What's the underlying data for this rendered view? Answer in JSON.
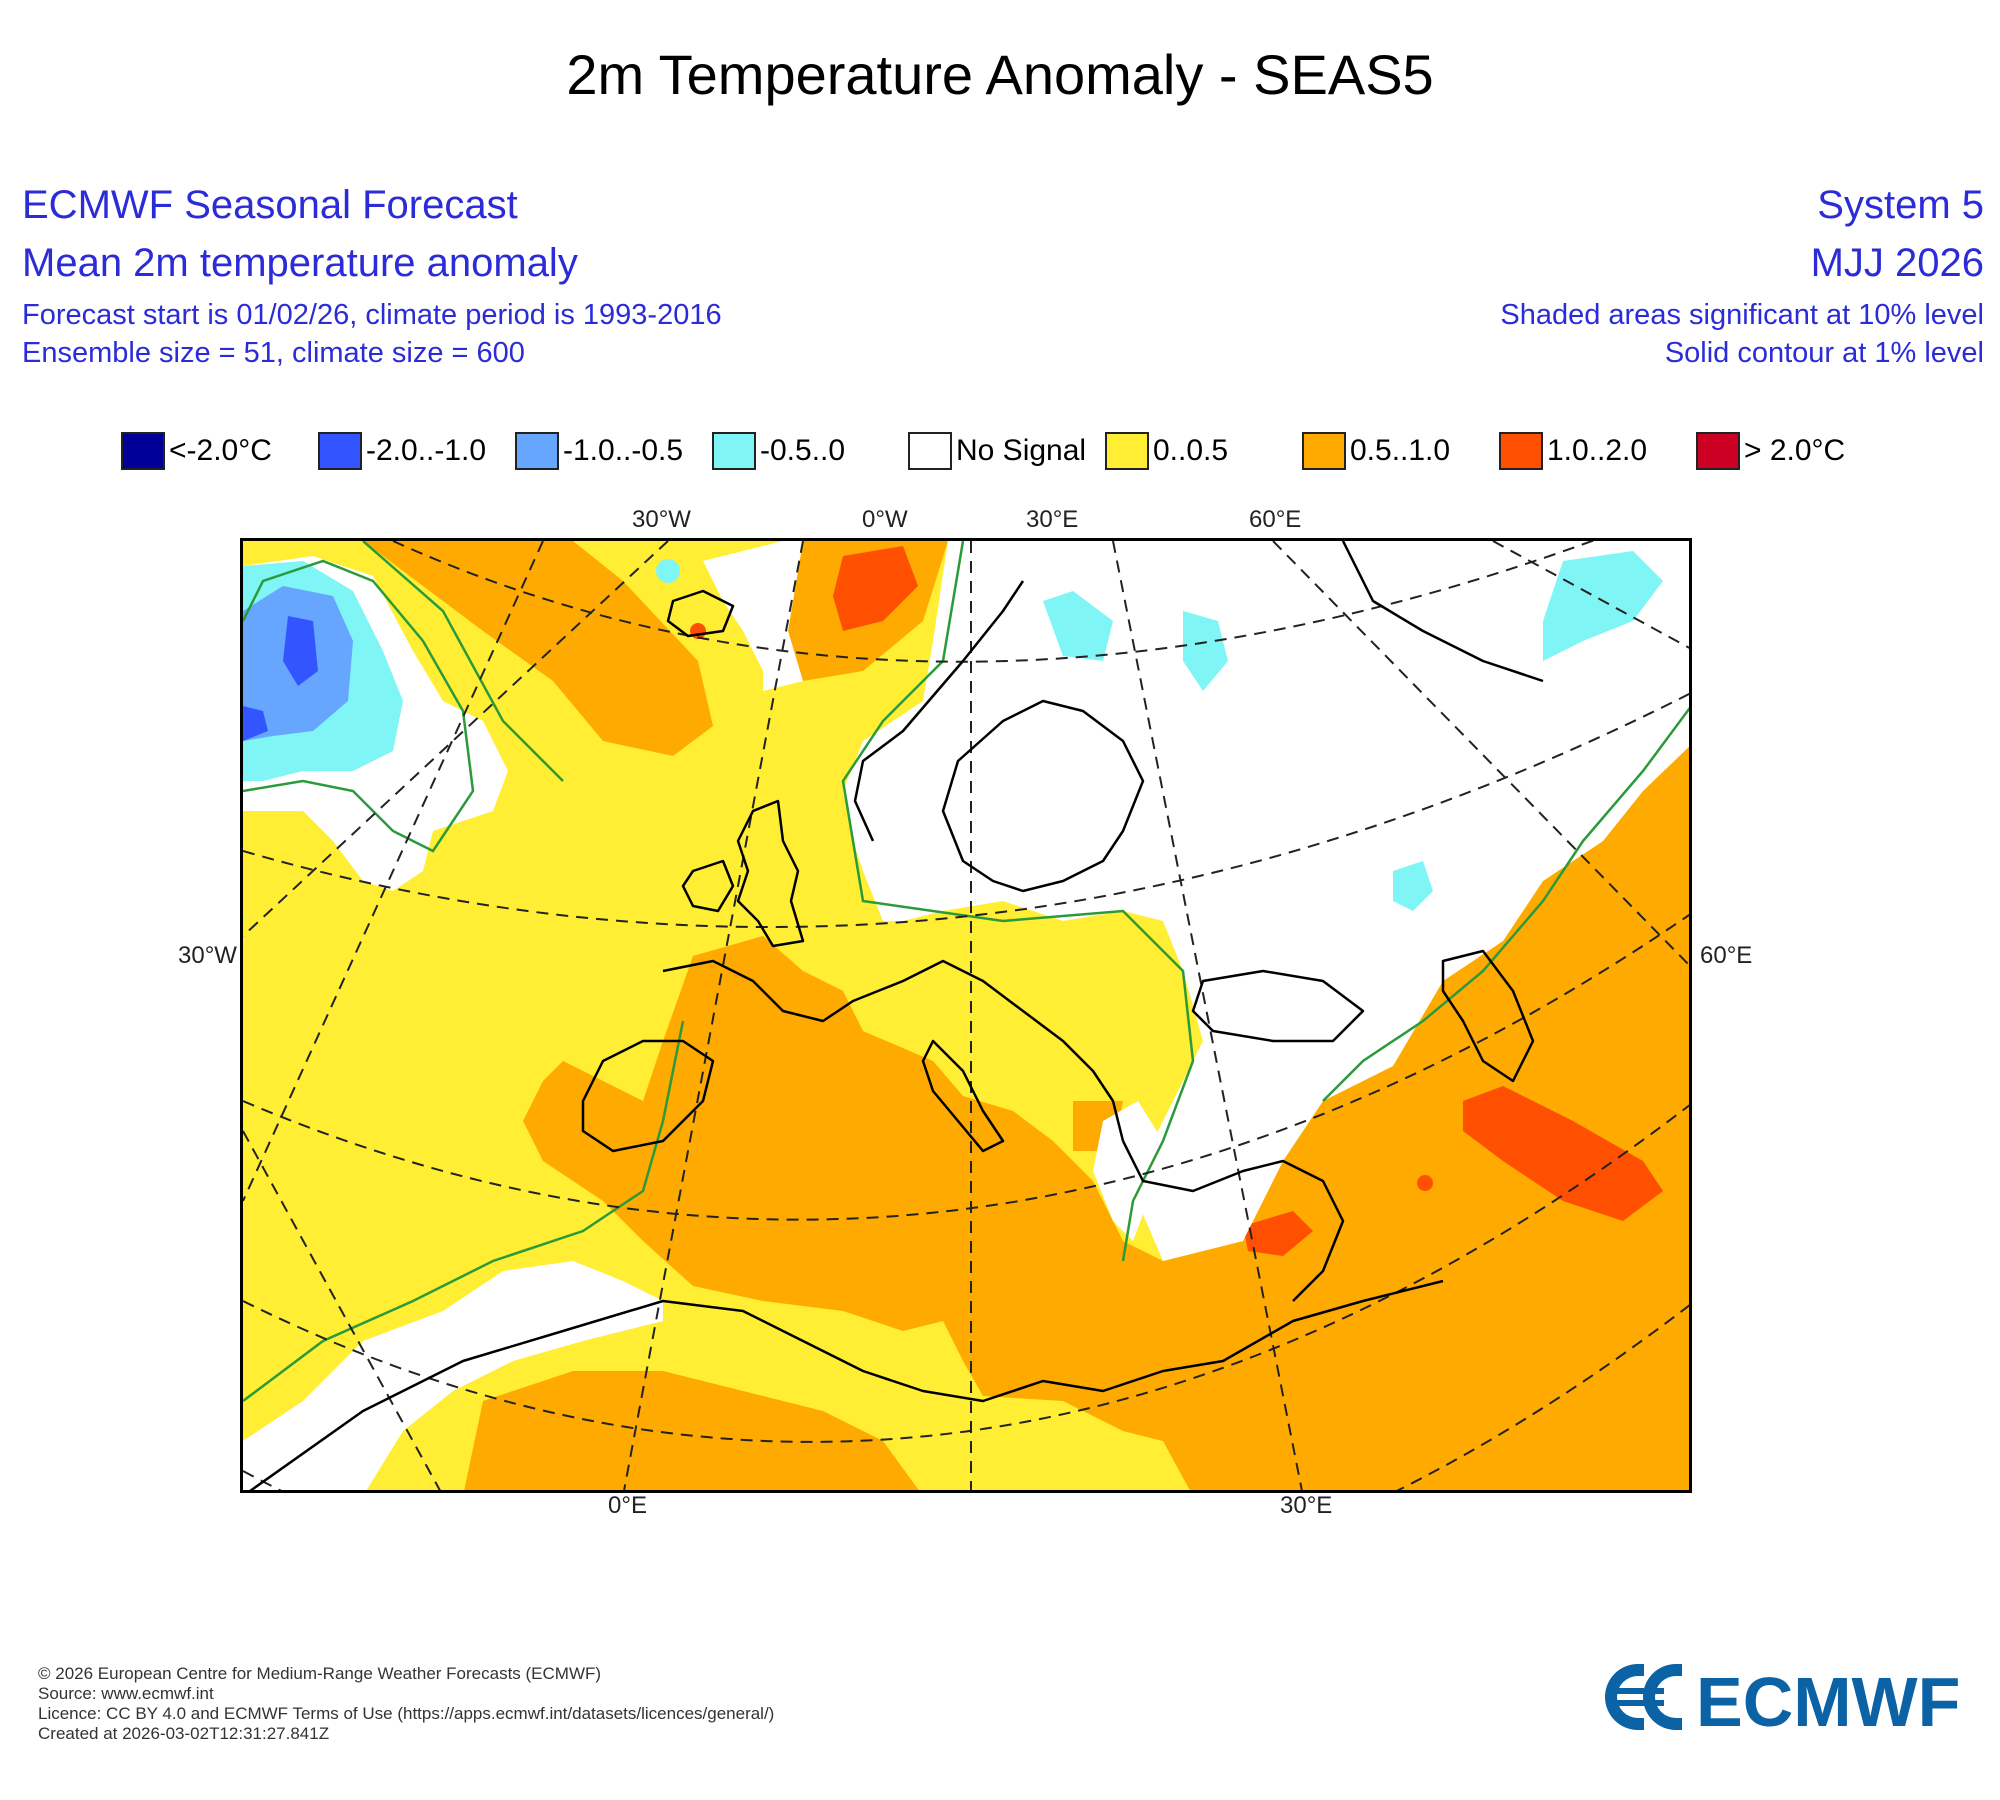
{
  "title": "2m Temperature Anomaly - SEAS5",
  "header": {
    "left": [
      "ECMWF Seasonal Forecast",
      "Mean 2m temperature anomaly",
      "Forecast start is 01/02/26, climate period is 1993-2016",
      "Ensemble size = 51, climate size = 600"
    ],
    "right": [
      "System 5",
      "MJJ 2026",
      "Shaded areas significant at 10% level",
      "Solid contour at 1% level"
    ]
  },
  "legend": [
    {
      "label": "<-2.0°C",
      "color": "#000099"
    },
    {
      "label": "-2.0..-1.0",
      "color": "#3355ff"
    },
    {
      "label": "-1.0..-0.5",
      "color": "#66a6ff"
    },
    {
      "label": "-0.5..0",
      "color": "#7ff5f5"
    },
    {
      "label": "No Signal",
      "color": "#ffffff"
    },
    {
      "label": "0..0.5",
      "color": "#ffee33"
    },
    {
      "label": "0.5..1.0",
      "color": "#ffaa00"
    },
    {
      "label": "1.0..2.0",
      "color": "#ff4f00"
    },
    {
      "label": "> 2.0°C",
      "color": "#cc0022"
    }
  ],
  "map": {
    "region": "Europe",
    "top_labels": [
      "30°W",
      "0°W",
      "30°E",
      "60°E"
    ],
    "bottom_labels": [
      "0°E",
      "30°E"
    ],
    "left_label": "30°W",
    "right_label": "60°E"
  },
  "footer": [
    "© 2026 European Centre for Medium-Range Weather Forecasts (ECMWF)",
    "Source: www.ecmwf.int",
    "Licence: CC BY 4.0 and ECMWF Terms of Use (https://apps.ecmwf.int/datasets/licences/general/)",
    "Created at 2026-03-02T12:31:27.841Z"
  ],
  "logo_text": "ECMWF",
  "colors": {
    "header_text": "#2b2bd8",
    "contour": "#2a9a3a",
    "logo": "#0b62a4"
  }
}
